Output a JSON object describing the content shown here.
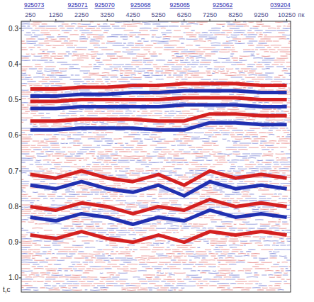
{
  "chart_data": {
    "type": "seismic_section",
    "x_label": "пк",
    "y_label": "t,c",
    "xlim": [
      -100,
      10400
    ],
    "ylim": [
      0.28,
      1.04
    ],
    "xticks": [
      250,
      1250,
      2250,
      3250,
      4250,
      5250,
      6250,
      7250,
      8250,
      9250,
      10250
    ],
    "yticks": [
      0.3,
      0.4,
      0.5,
      0.6,
      0.7,
      0.8,
      0.9,
      {
        "value": 1,
        "label": "1.0"
      }
    ],
    "wells": [
      {
        "label": "925073",
        "x": 400
      },
      {
        "label": "925071",
        "x": 2100
      },
      {
        "label": "925070",
        "x": 3150
      },
      {
        "label": "925068",
        "x": 4550
      },
      {
        "label": "925065",
        "x": 6080
      },
      {
        "label": "925062",
        "x": 7750
      },
      {
        "label": "039204",
        "x": 10000
      }
    ],
    "x": [
      250,
      1250,
      2250,
      3250,
      4250,
      5250,
      6250,
      7250,
      8250,
      9250,
      10250
    ],
    "horizons": [
      {
        "color": "#d42020",
        "values": [
          0.47,
          0.47,
          0.465,
          0.465,
          0.46,
          0.46,
          0.455,
          0.455,
          0.455,
          0.46,
          0.46
        ]
      },
      {
        "color": "#2030b0",
        "values": [
          0.49,
          0.49,
          0.485,
          0.485,
          0.48,
          0.48,
          0.475,
          0.475,
          0.475,
          0.48,
          0.48
        ]
      },
      {
        "color": "#d42020",
        "values": [
          0.505,
          0.505,
          0.5,
          0.5,
          0.5,
          0.5,
          0.495,
          0.495,
          0.495,
          0.5,
          0.5
        ]
      },
      {
        "color": "#2030b0",
        "values": [
          0.525,
          0.525,
          0.52,
          0.52,
          0.52,
          0.52,
          0.515,
          0.515,
          0.515,
          0.52,
          0.52
        ]
      },
      {
        "color": "#d42020",
        "values": [
          0.56,
          0.56,
          0.555,
          0.555,
          0.555,
          0.56,
          0.56,
          0.54,
          0.54,
          0.545,
          0.545
        ]
      },
      {
        "color": "#2030b0",
        "values": [
          0.585,
          0.585,
          0.58,
          0.58,
          0.58,
          0.585,
          0.585,
          0.565,
          0.565,
          0.57,
          0.57
        ]
      },
      {
        "color": "#d42020",
        "values": [
          0.71,
          0.72,
          0.7,
          0.72,
          0.73,
          0.71,
          0.74,
          0.7,
          0.72,
          0.71,
          0.72
        ]
      },
      {
        "color": "#2030b0",
        "values": [
          0.74,
          0.75,
          0.73,
          0.75,
          0.76,
          0.74,
          0.77,
          0.73,
          0.75,
          0.74,
          0.75
        ]
      },
      {
        "color": "#d42020",
        "values": [
          0.8,
          0.81,
          0.79,
          0.8,
          0.82,
          0.8,
          0.81,
          0.78,
          0.8,
          0.79,
          0.8
        ]
      },
      {
        "color": "#2030b0",
        "values": [
          0.83,
          0.84,
          0.82,
          0.83,
          0.85,
          0.83,
          0.84,
          0.81,
          0.83,
          0.82,
          0.83
        ]
      },
      {
        "color": "#d42020",
        "values": [
          0.88,
          0.89,
          0.87,
          0.89,
          0.9,
          0.88,
          0.9,
          0.87,
          0.88,
          0.87,
          0.88
        ]
      }
    ]
  }
}
